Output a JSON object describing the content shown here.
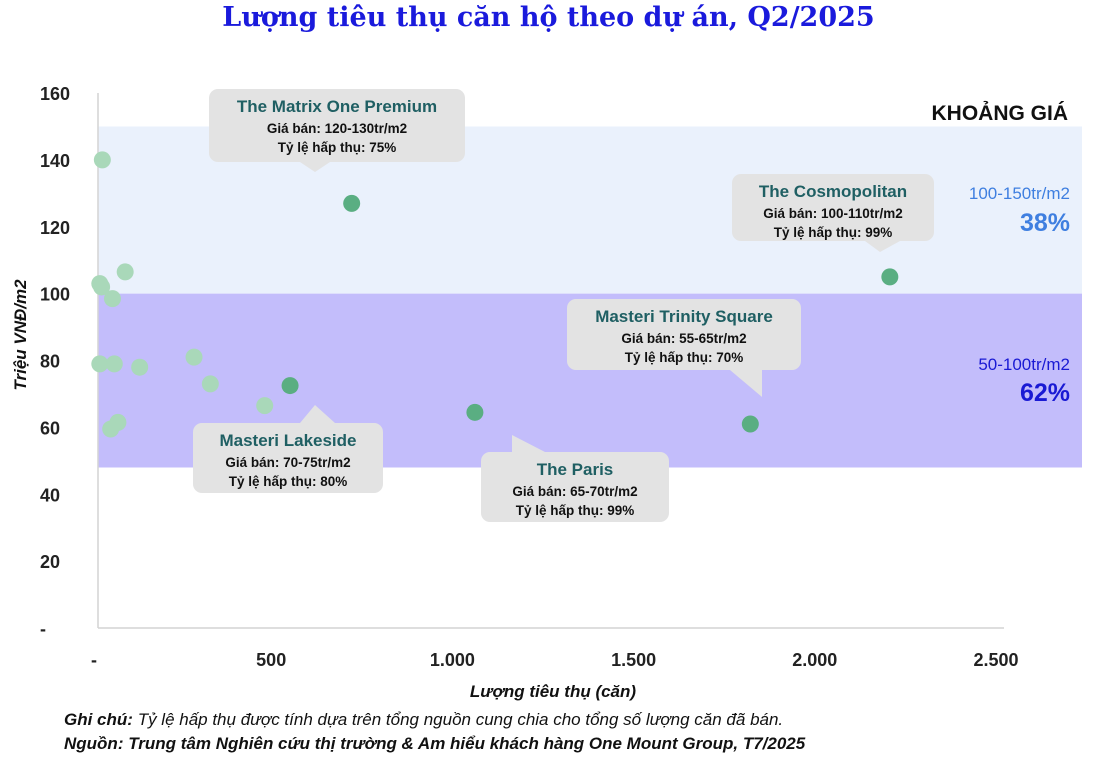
{
  "chart_data": {
    "type": "scatter",
    "title": "Lượng tiêu thụ căn hộ theo dự án, Q2/2025",
    "xlabel": "Lượng tiêu thụ (căn)",
    "ylabel": "Triệu VNĐ/m2",
    "xlim": [
      0,
      2500
    ],
    "ylim": [
      0,
      160
    ],
    "x_ticks": [
      {
        "value": 0,
        "label": "-"
      },
      {
        "value": 500,
        "label": "500"
      },
      {
        "value": 1000,
        "label": "1.000"
      },
      {
        "value": 1500,
        "label": "1.500"
      },
      {
        "value": 2000,
        "label": "2.000"
      },
      {
        "value": 2500,
        "label": "2.500"
      }
    ],
    "y_ticks": [
      {
        "value": 0,
        "label": "-"
      },
      {
        "value": 20,
        "label": "20"
      },
      {
        "value": 40,
        "label": "40"
      },
      {
        "value": 60,
        "label": "60"
      },
      {
        "value": 80,
        "label": "80"
      },
      {
        "value": 100,
        "label": "100"
      },
      {
        "value": 120,
        "label": "120"
      },
      {
        "value": 140,
        "label": "140"
      },
      {
        "value": 160,
        "label": "160"
      }
    ],
    "grid": false,
    "point_colors": {
      "highlight": "#5aae82",
      "other": "#a9d8b9"
    },
    "points": [
      {
        "x": 12,
        "y": 140,
        "highlight": false
      },
      {
        "x": 75,
        "y": 106.5,
        "highlight": false
      },
      {
        "x": 5,
        "y": 103,
        "highlight": false
      },
      {
        "x": 10,
        "y": 102,
        "highlight": false
      },
      {
        "x": 40,
        "y": 98.5,
        "highlight": false
      },
      {
        "x": 5,
        "y": 79,
        "highlight": false
      },
      {
        "x": 45,
        "y": 79,
        "highlight": false
      },
      {
        "x": 115,
        "y": 78,
        "highlight": false
      },
      {
        "x": 265,
        "y": 81,
        "highlight": false
      },
      {
        "x": 310,
        "y": 73,
        "highlight": false
      },
      {
        "x": 460,
        "y": 66.5,
        "highlight": false
      },
      {
        "x": 55,
        "y": 61.5,
        "highlight": false
      },
      {
        "x": 35,
        "y": 59.5,
        "highlight": false
      },
      {
        "x": 700,
        "y": 127,
        "highlight": true,
        "project": "The Matrix One Premium"
      },
      {
        "x": 530,
        "y": 72.5,
        "highlight": true,
        "project": "Masteri Lakeside"
      },
      {
        "x": 1040,
        "y": 64.5,
        "highlight": true,
        "project": "The Paris"
      },
      {
        "x": 1800,
        "y": 61,
        "highlight": true,
        "project": "Masteri Trinity Square"
      },
      {
        "x": 2185,
        "y": 105,
        "highlight": true,
        "project": "The Cosmopolitan"
      }
    ],
    "bands": [
      {
        "from": 100,
        "to": 150,
        "range_label": "100-150tr/m2",
        "share": "38%",
        "fill": "#eaf1fc",
        "text_color": "#3f7fe0"
      },
      {
        "from": 48,
        "to": 100,
        "range_label": "50-100tr/m2",
        "share": "62%",
        "fill": "#c3bdfb",
        "text_color": "#1a1ad4"
      }
    ],
    "band_title": "KHOẢNG GIÁ",
    "callouts": [
      {
        "name": "The Matrix One Premium",
        "price": "Giá bán: 120-130tr/m2",
        "absorption": "Tỷ lệ hấp thụ: 75%"
      },
      {
        "name": "The Cosmopolitan",
        "price": "Giá bán: 100-110tr/m2",
        "absorption": "Tỷ lệ hấp thụ: 99%"
      },
      {
        "name": "Masteri Trinity Square",
        "price": "Giá bán: 55-65tr/m2",
        "absorption": "Tỷ lệ hấp thụ: 70%"
      },
      {
        "name": "Masteri Lakeside",
        "price": "Giá bán: 70-75tr/m2",
        "absorption": "Tỷ lệ hấp thụ: 80%"
      },
      {
        "name": "The Paris",
        "price": "Giá bán: 65-70tr/m2",
        "absorption": "Tỷ lệ hấp thụ: 99%"
      }
    ]
  },
  "notes": {
    "note_label": "Ghi chú:",
    "note_text": "Tỷ lệ hấp thụ được tính dựa trên tổng nguồn cung chia cho tổng số lượng căn đã bán.",
    "source_text": "Nguồn: Trung tâm Nghiên cứu thị trường & Am hiểu khách hàng One Mount Group, T7/2025"
  }
}
